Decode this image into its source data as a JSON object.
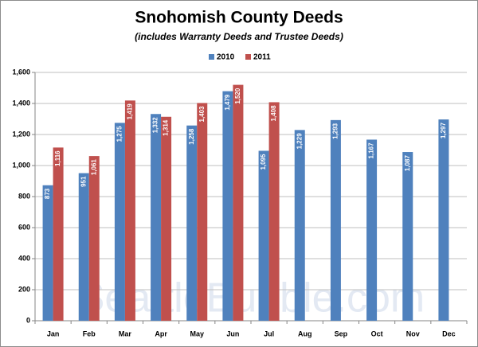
{
  "chart_data": {
    "type": "bar",
    "title": "Snohomish County Deeds",
    "subtitle": "(includes Warranty Deeds and Trustee Deeds)",
    "watermark": "SeattleBubble.com",
    "legend": "top",
    "grid": true,
    "categories": [
      "Jan",
      "Feb",
      "Mar",
      "Apr",
      "May",
      "Jun",
      "Jul",
      "Aug",
      "Sep",
      "Oct",
      "Nov",
      "Dec"
    ],
    "series": [
      {
        "name": "2010",
        "color": "#4f81bd",
        "values": [
          873,
          951,
          1275,
          1332,
          1258,
          1479,
          1095,
          1229,
          1293,
          1167,
          1087,
          1297
        ],
        "value_labels": [
          "873",
          "951",
          "1,275",
          "1,332",
          "1,258",
          "1,479",
          "1,095",
          "1,229",
          "1,293",
          "1,167",
          "1,087",
          "1,297"
        ]
      },
      {
        "name": "2011",
        "color": "#c0504d",
        "values": [
          1116,
          1061,
          1419,
          1314,
          1403,
          1520,
          1408,
          null,
          null,
          null,
          null,
          null
        ],
        "value_labels": [
          "1,116",
          "1,061",
          "1,419",
          "1,314",
          "1,403",
          "1,520",
          "1,408",
          null,
          null,
          null,
          null,
          null
        ]
      }
    ],
    "ylim": [
      0,
      1600
    ],
    "yticks": [
      0,
      200,
      400,
      600,
      800,
      {
        "value": 1000,
        "label": "1,000"
      },
      {
        "value": 1200,
        "label": "1,200"
      },
      {
        "value": 1400,
        "label": "1,400"
      },
      {
        "value": 1600,
        "label": "1,600"
      }
    ]
  }
}
